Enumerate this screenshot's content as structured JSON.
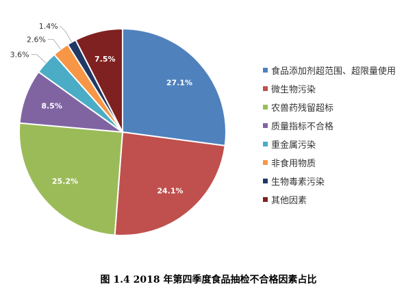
{
  "chart_data": {
    "type": "pie",
    "title": "",
    "categories": [
      "食品添加剂超范围、超限量使用",
      "微生物污染",
      "农兽药残留超标",
      "质量指标不合格",
      "重金属污染",
      "非食用物质",
      "生物毒素污染",
      "其他因素"
    ],
    "values": [
      27.1,
      24.1,
      25.2,
      8.5,
      3.6,
      2.6,
      1.4,
      7.5
    ],
    "data_labels": [
      "27.1%",
      "24.1%",
      "25.2%",
      "8.5%",
      "3.6%",
      "2.6%",
      "1.4%",
      "7.5%"
    ],
    "colors": [
      "#4F81BD",
      "#C0504D",
      "#9BBB59",
      "#8064A2",
      "#4BACC6",
      "#F79646",
      "#1F3864",
      "#7F2121"
    ],
    "start": "12 o'clock",
    "direction": "clockwise",
    "legend_position": "right"
  },
  "caption": "图 1.4 2018 年第四季度食品抽检不合格因素占比"
}
